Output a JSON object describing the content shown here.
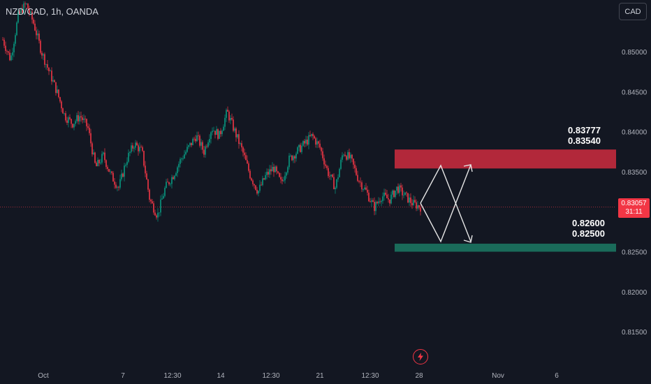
{
  "header": {
    "title": "NZD/CAD, 1h, OANDA",
    "currency_button": "CAD"
  },
  "price_badge": {
    "price": "0.83057",
    "countdown": "31:11"
  },
  "zones": {
    "upper": {
      "top_label": "0.83777",
      "bottom_label": "0.83540",
      "color": "#b2283a"
    },
    "lower": {
      "top_label": "0.82600",
      "bottom_label": "0.82500",
      "color": "#1a6b5a"
    }
  },
  "icons": {
    "flash": "flash-icon"
  },
  "chart_data": {
    "type": "candlestick",
    "symbol": "NZD/CAD",
    "timeframe": "1h",
    "source": "OANDA",
    "y_ticks": [
      0.85,
      0.845,
      0.84,
      0.835,
      0.83,
      0.825,
      0.82,
      0.815
    ],
    "y_tick_labels": [
      "0.85000",
      "0.84500",
      "0.84000",
      "0.83500",
      "0.83000",
      "0.82500",
      "0.82000",
      "0.81500"
    ],
    "x_tick_labels": [
      "Oct",
      "7",
      "12:30",
      "14",
      "12:30",
      "21",
      "12:30",
      "28",
      "Nov",
      "6"
    ],
    "last_price": 0.83057,
    "price_path": [
      0.8515,
      0.849,
      0.8545,
      0.856,
      0.8535,
      0.85,
      0.8475,
      0.845,
      0.842,
      0.841,
      0.842,
      0.8405,
      0.8355,
      0.837,
      0.8345,
      0.833,
      0.8365,
      0.8385,
      0.8375,
      0.8315,
      0.8295,
      0.833,
      0.8345,
      0.8365,
      0.838,
      0.8395,
      0.8375,
      0.8405,
      0.8395,
      0.8425,
      0.84,
      0.8375,
      0.8345,
      0.8325,
      0.8345,
      0.8355,
      0.8335,
      0.8365,
      0.8375,
      0.8385,
      0.8395,
      0.838,
      0.835,
      0.833,
      0.8375,
      0.8365,
      0.834,
      0.8325,
      0.8305,
      0.832,
      0.8315,
      0.833,
      0.832,
      0.831,
      0.8306
    ],
    "resistance_zone": [
      0.8354,
      0.83777
    ],
    "support_zone": [
      0.825,
      0.826
    ],
    "projection_lines": [
      [
        0.8306,
        0.8355
      ],
      [
        0.8306,
        0.8258
      ],
      [
        0.8355,
        0.8258
      ],
      [
        0.8258,
        0.8355
      ]
    ],
    "grid": false
  }
}
